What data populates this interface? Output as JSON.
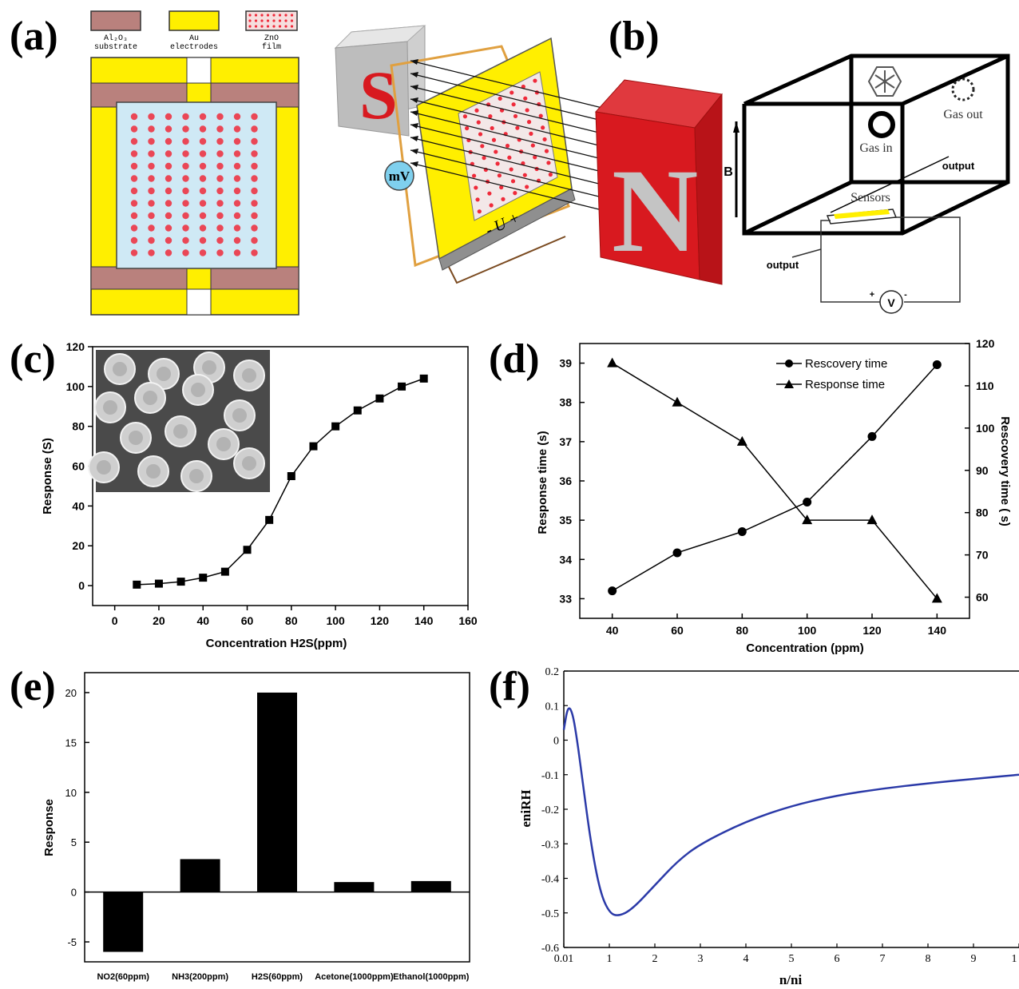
{
  "panels": {
    "a_label": "(a)",
    "b_label": "(b)",
    "c_label": "(c)",
    "d_label": "(d)",
    "e_label": "(e)",
    "f_label": "(f)"
  },
  "legend_a": {
    "substrate": [
      "Al₂O₃",
      "substrate"
    ],
    "electrodes": [
      "Au",
      "electrodes"
    ],
    "film": [
      "ZnO",
      "film"
    ]
  },
  "magnet_diagram": {
    "south": "S",
    "north": "N",
    "meter": "mV",
    "voltage": "- U +"
  },
  "chamber": {
    "gas_out": "Gas out",
    "gas_in": "Gas in",
    "output_top": "output",
    "output_left": "output",
    "sensors": "Sensors",
    "field": "B",
    "meter": "V",
    "plus": "+",
    "minus": "-"
  },
  "colors": {
    "substrate": "#b9817d",
    "electrode": "#ffef00",
    "film": "#cfe9f5",
    "dot": "#ef2a3a",
    "magnet_red": "#d8191f",
    "magnet_gray": "#c4c4c4",
    "wire": "#e0a040",
    "meter": "#7fd0ee",
    "curve_f": "#2b3aa8"
  },
  "chart_data": [
    {
      "id": "c",
      "type": "line",
      "xlabel": "Concentration H2S(ppm)",
      "ylabel": "Response (S)",
      "xlim": [
        -10,
        160
      ],
      "ylim": [
        -10,
        120
      ],
      "xticks": [
        0,
        20,
        40,
        60,
        80,
        100,
        120,
        140,
        160
      ],
      "yticks": [
        0,
        20,
        40,
        60,
        80,
        100,
        120
      ],
      "marker": "square",
      "x": [
        10,
        20,
        30,
        40,
        50,
        60,
        70,
        80,
        90,
        100,
        110,
        120,
        130,
        140
      ],
      "y": [
        0.5,
        1,
        2,
        4,
        7,
        18,
        33,
        55,
        70,
        80,
        88,
        94,
        100,
        104
      ]
    },
    {
      "id": "d",
      "type": "line",
      "xlabel": "Concentration (ppm)",
      "ylabel": "Response time (s)",
      "y2label": "Rescovery time  ( s)",
      "x": [
        40,
        60,
        80,
        100,
        120,
        140
      ],
      "xlim": [
        30,
        150
      ],
      "ylim": [
        32.5,
        39.5
      ],
      "y2lim": [
        55,
        120
      ],
      "xticks": [
        40,
        60,
        80,
        100,
        120,
        140
      ],
      "yticks": [
        33,
        34,
        35,
        36,
        37,
        38,
        39
      ],
      "y2ticks": [
        60,
        70,
        80,
        90,
        100,
        110,
        120
      ],
      "legend_position": "top-right",
      "series": [
        {
          "name": "Rescovery time",
          "axis": "right",
          "marker": "circle",
          "values": [
            61.5,
            70.5,
            75.5,
            82.5,
            98,
            115
          ]
        },
        {
          "name": "Response time",
          "axis": "left",
          "marker": "triangle",
          "values": [
            39,
            38,
            37,
            35,
            35,
            33
          ]
        }
      ]
    },
    {
      "id": "e",
      "type": "bar",
      "ylabel": "Response",
      "categories": [
        "NO2(60ppm)",
        "NH3(200ppm)",
        "H2S(60ppm)",
        "Acetone(1000ppm)",
        "Ethanol(1000ppm)"
      ],
      "values": [
        -6,
        3.3,
        20,
        1,
        1.1
      ],
      "ylim": [
        -7,
        22
      ],
      "yticks": [
        -5,
        0,
        5,
        10,
        15,
        20
      ]
    },
    {
      "id": "f",
      "type": "line",
      "xlabel": "n/ni",
      "ylabel": "eniRH",
      "xlim": [
        0.01,
        10
      ],
      "ylim": [
        -0.6,
        0.2
      ],
      "xticks": [
        "0.01",
        "1",
        "2",
        "3",
        "4",
        "5",
        "6",
        "7",
        "8",
        "9",
        "1"
      ],
      "yticks": [
        "0.2",
        "0.1",
        "0",
        "-0.1",
        "-0.2",
        "-0.3",
        "-0.4",
        "-0.5",
        "-0.6"
      ],
      "x": [
        0.01,
        0.1,
        0.2,
        0.3,
        0.4,
        0.6,
        0.8,
        1.0,
        1.2,
        1.5,
        2.0,
        2.5,
        3.0,
        4.0,
        5.0,
        6.0,
        7.0,
        8.0,
        9.0,
        10.0
      ],
      "y": [
        0.03,
        0.1,
        0.08,
        0.0,
        -0.1,
        -0.3,
        -0.44,
        -0.5,
        -0.51,
        -0.49,
        -0.42,
        -0.35,
        -0.3,
        -0.235,
        -0.19,
        -0.16,
        -0.14,
        -0.125,
        -0.112,
        -0.1
      ]
    }
  ]
}
